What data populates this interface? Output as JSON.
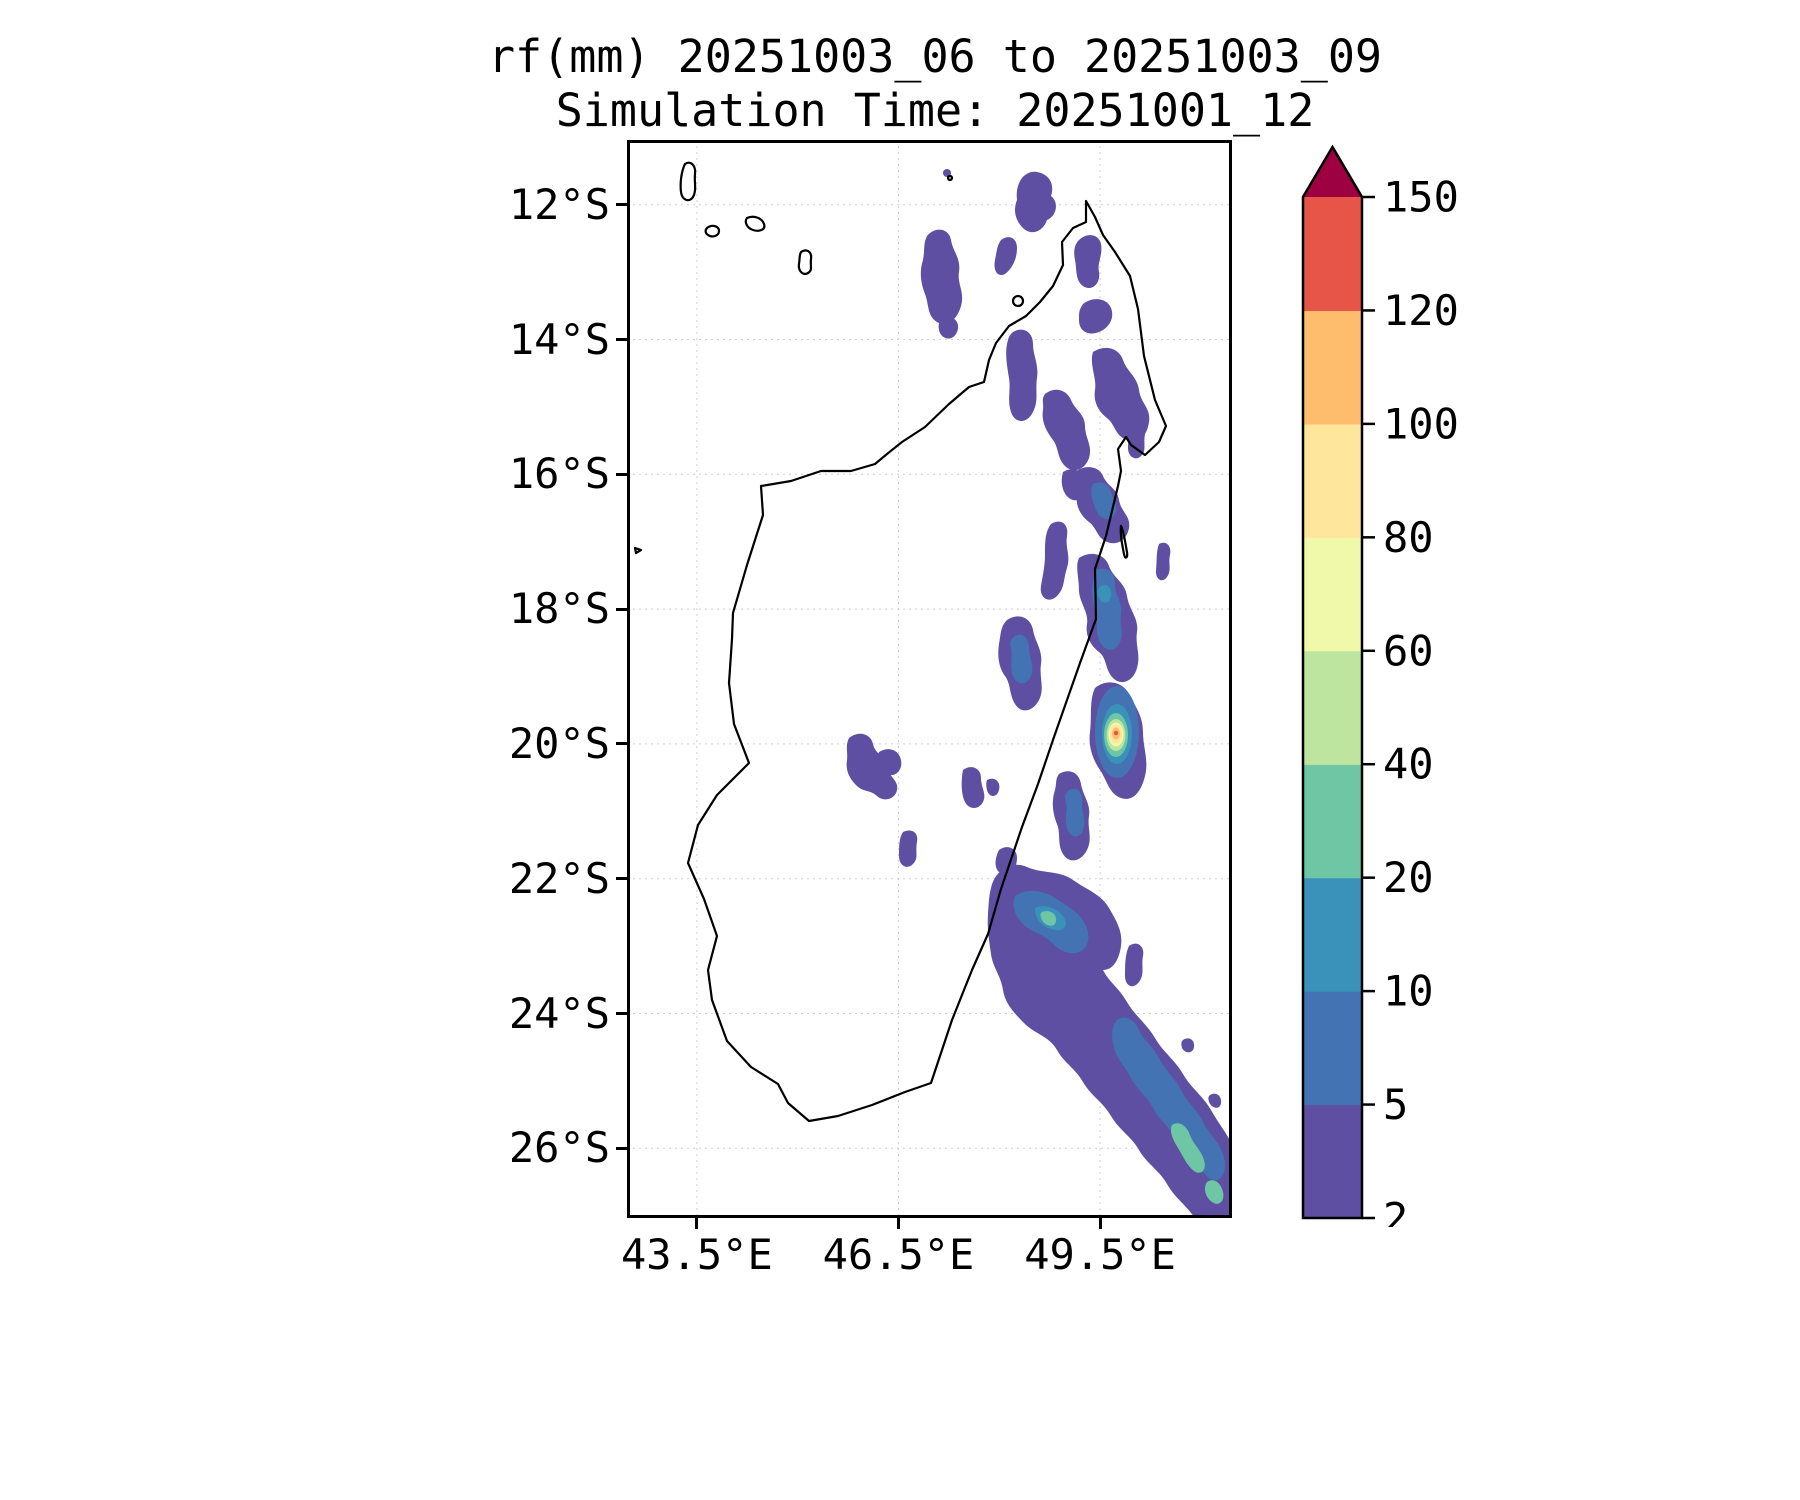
{
  "figure": {
    "title": "rf(mm) 20251003_06 to 20251003_09",
    "subtitle": "Simulation Time: 20251001_12"
  },
  "axes": {
    "x_ticks": [
      {
        "label": "43.5°E",
        "lon": 43.5
      },
      {
        "label": "46.5°E",
        "lon": 46.5
      },
      {
        "label": "49.5°E",
        "lon": 49.5
      }
    ],
    "y_ticks": [
      {
        "label": "12°S",
        "lat": 12
      },
      {
        "label": "14°S",
        "lat": 14
      },
      {
        "label": "16°S",
        "lat": 16
      },
      {
        "label": "18°S",
        "lat": 18
      },
      {
        "label": "20°S",
        "lat": 20
      },
      {
        "label": "22°S",
        "lat": 22
      },
      {
        "label": "24°S",
        "lat": 24
      },
      {
        "label": "26°S",
        "lat": 26
      }
    ]
  },
  "colorbar": {
    "levels": [
      2,
      5,
      10,
      20,
      40,
      60,
      80,
      100,
      120,
      150
    ],
    "colors": [
      "#5e4fa2",
      "#4373b3",
      "#3a92bb",
      "#6fc6a5",
      "#bde5a0",
      "#f0f9a9",
      "#fee79c",
      "#fdbd6d",
      "#e65548"
    ],
    "over_color": "#9e0142",
    "units": "mm"
  },
  "chart_data": {
    "type": "heatmap",
    "title": "rf(mm) 20251003_06 to 20251003_09",
    "subtitle": "Simulation Time: 20251001_12",
    "variable": "rainfall accumulation",
    "units": "mm",
    "valid_period": "20251003_06 to 20251003_09",
    "simulation_time": "20251001_12",
    "xlabel": "",
    "ylabel": "",
    "x_tick_labels": [
      "43.5°E",
      "46.5°E",
      "49.5°E"
    ],
    "y_tick_labels": [
      "12°S",
      "14°S",
      "16°S",
      "18°S",
      "20°S",
      "22°S",
      "24°S",
      "26°S"
    ],
    "lon_range_east": [
      42.5,
      51.5
    ],
    "lat_range_south": [
      11.0,
      27.0
    ],
    "grid": true,
    "legend_position": "right",
    "contour_levels_mm": [
      2,
      5,
      10,
      20,
      40,
      60,
      80,
      100,
      120,
      150
    ],
    "contour_colors": [
      "#5e4fa2",
      "#4373b3",
      "#3a92bb",
      "#6fc6a5",
      "#bde5a0",
      "#f0f9a9",
      "#fee79c",
      "#fdbd6d",
      "#e65548"
    ],
    "over_color": "#9e0142",
    "basemap": "coastline outline of Madagascar and nearby islands",
    "features": [
      {
        "desc": "scattered light rain patches 2-10 mm over the far north and off the northern tip",
        "lon": 48.6,
        "lat_s": 12.2
      },
      {
        "desc": "elongated 2-5 mm patch northwest of the island",
        "lon": 47.2,
        "lat_s": 13.0
      },
      {
        "desc": "broken 2-20 mm rain patches along the northeast and east coast between 14°S and 19°S",
        "lon": 49.7,
        "lat_s": 16.5
      },
      {
        "desc": "intense isolated convective cell just off the east coast, core exceeds 150 mm",
        "lon": 49.75,
        "lat_s": 19.6,
        "core_exceeds_mm": 150
      },
      {
        "desc": "light 2-5 mm spots over the central highlands",
        "lon": 46.2,
        "lat_s": 20.3
      },
      {
        "desc": "broad southeast offshore rain band 2-40 mm stretching from ~22°S to the map corner",
        "lon": 50.3,
        "lat_s": 24.5
      }
    ]
  }
}
